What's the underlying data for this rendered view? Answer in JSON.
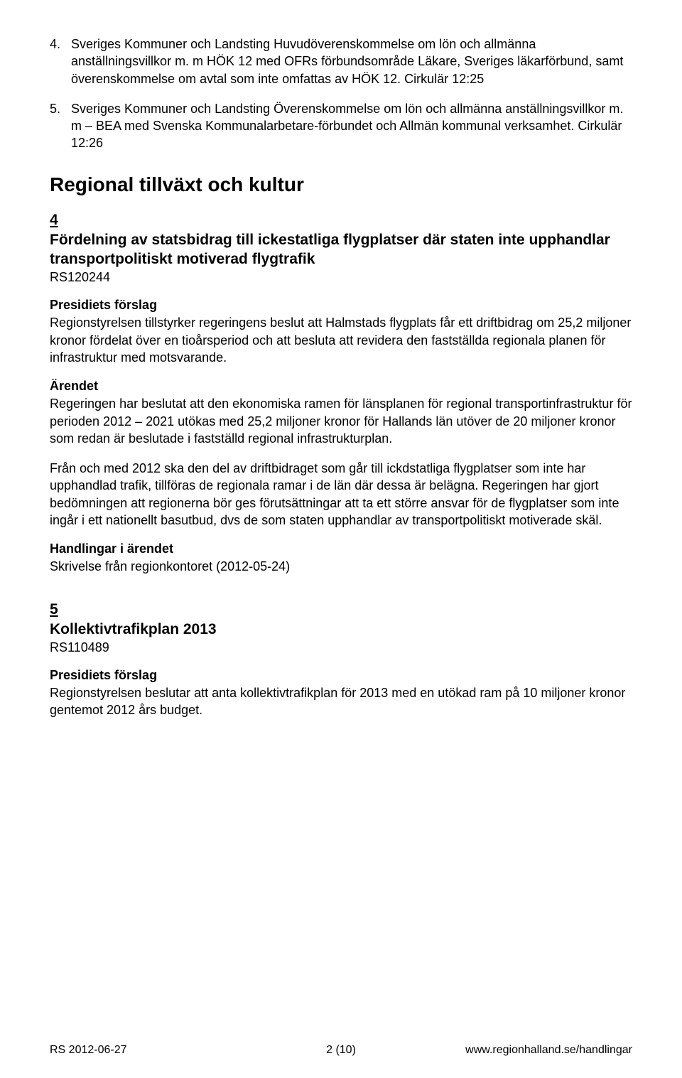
{
  "intro_list": [
    {
      "num": "4.",
      "text": "Sveriges Kommuner och Landsting Huvudöverenskommelse om lön och allmänna anställningsvillkor m. m HÖK 12 med OFRs förbundsområde Läkare, Sveriges läkarförbund, samt överenskommelse om avtal som inte omfattas av HÖK 12. Cirkulär 12:25"
    },
    {
      "num": "5.",
      "text": "Sveriges Kommuner och Landsting Överenskommelse om lön och allmänna anställningsvillkor m. m – BEA med Svenska Kommunalarbetare-förbundet och Allmän kommunal verksamhet. Cirkulär 12:26"
    }
  ],
  "section_heading": "Regional tillväxt och kultur",
  "agenda": [
    {
      "num": "4",
      "title": "Fördelning av statsbidrag till ickestatliga flygplatser där staten inte upphandlar transportpolitiskt motiverad flygtrafik",
      "ref": "RS120244",
      "blocks": [
        {
          "heading": "Presidiets förslag",
          "paras": [
            "Regionstyrelsen tillstyrker regeringens beslut att Halmstads flygplats får ett driftbidrag om 25,2 miljoner kronor fördelat över en tioårsperiod och att besluta att revidera den fastställda regionala planen för infrastruktur med motsvarande."
          ]
        },
        {
          "heading": "Ärendet",
          "paras": [
            "Regeringen har beslutat att den ekonomiska ramen för länsplanen för regional transportinfrastruktur för perioden 2012 – 2021 utökas med 25,2 miljoner kronor för Hallands län utöver de 20 miljoner kronor som redan är beslutade i fastställd regional infrastrukturplan.",
            "Från och med 2012 ska den del av driftbidraget som går till ickdstatliga flygplatser som inte har upphandlad trafik, tillföras de regionala ramar i de län där dessa är belägna. Regeringen har gjort bedömningen att regionerna bör ges förutsättningar att ta ett större ansvar för de flygplatser som inte ingår i ett nationellt basutbud, dvs de som staten upphandlar av transportpolitiskt motiverade skäl."
          ]
        },
        {
          "heading": "Handlingar i ärendet",
          "paras": [
            "Skrivelse från regionkontoret (2012-05-24)"
          ]
        }
      ]
    },
    {
      "num": "5",
      "title": "Kollektivtrafikplan 2013",
      "ref": "RS110489",
      "blocks": [
        {
          "heading": "Presidiets förslag",
          "paras": [
            "Regionstyrelsen beslutar att anta kollektivtrafikplan för 2013 med en utökad ram på 10 miljoner kronor gentemot 2012 års budget."
          ]
        }
      ]
    }
  ],
  "footer": {
    "date": "RS 2012-06-27",
    "page": "2 (10)",
    "url": "www.regionhalland.se/handlingar"
  }
}
